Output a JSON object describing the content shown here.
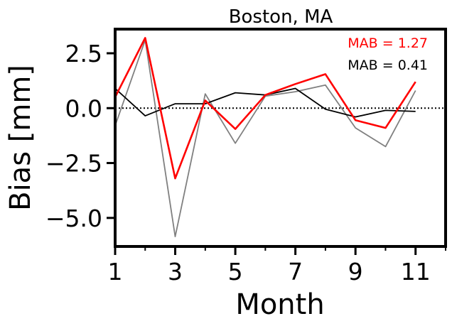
{
  "chart_data": {
    "type": "line",
    "title": "Boston, MA",
    "xlabel": "Month",
    "ylabel": "Bias [mm]",
    "xlim": [
      1,
      12
    ],
    "ylim": [
      -6.3,
      3.6
    ],
    "xticks": [
      1,
      3,
      5,
      7,
      9,
      11
    ],
    "yticks": [
      2.5,
      0.0,
      -2.5,
      -5.0
    ],
    "xtick_labels": [
      "1",
      "3",
      "5",
      "7",
      "9",
      "11"
    ],
    "ytick_labels": [
      "2.5",
      "0.0",
      "−2.5",
      "−5.0"
    ],
    "grid": false,
    "reference_line": {
      "y": 0,
      "style": "dotted",
      "color": "#000000"
    },
    "series": [
      {
        "color": "#808080",
        "x": [
          1,
          2,
          3,
          4,
          5,
          6,
          7,
          8,
          9,
          10,
          11
        ],
        "y": [
          -0.8,
          3.1,
          -5.85,
          0.65,
          -1.6,
          0.55,
          0.75,
          1.05,
          -0.9,
          -1.75,
          0.8
        ]
      },
      {
        "color": "#000000",
        "x": [
          1,
          2,
          3,
          4,
          5,
          6,
          7,
          8,
          9,
          10,
          11
        ],
        "y": [
          0.9,
          -0.35,
          0.2,
          0.2,
          0.7,
          0.6,
          0.9,
          -0.05,
          -0.4,
          -0.1,
          -0.15
        ]
      },
      {
        "color": "#ff0000",
        "x": [
          1,
          2,
          3,
          4,
          5,
          6,
          7,
          8,
          9,
          10,
          11
        ],
        "y": [
          0.5,
          3.2,
          -3.2,
          0.35,
          -0.95,
          0.6,
          1.1,
          1.55,
          -0.55,
          -0.9,
          1.2
        ]
      }
    ],
    "annotations": [
      {
        "text": "MAB = 1.27",
        "color": "#ff0000"
      },
      {
        "text": "MAB = 0.41",
        "color": "#000000"
      }
    ]
  }
}
